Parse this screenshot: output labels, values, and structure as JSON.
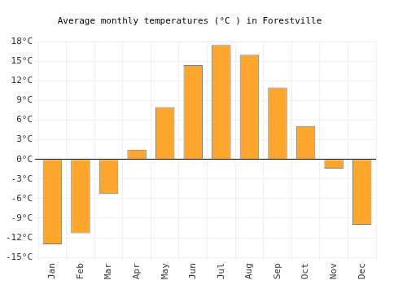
{
  "chart_data": {
    "type": "bar",
    "title": "Average monthly temperatures (°C ) in Forestville",
    "categories": [
      "Jan",
      "Feb",
      "Mar",
      "Apr",
      "May",
      "Jun",
      "Jul",
      "Aug",
      "Sep",
      "Oct",
      "Nov",
      "Dec"
    ],
    "values": [
      -13,
      -11.3,
      -5.3,
      1.5,
      8,
      14.4,
      17.5,
      16,
      11,
      5.1,
      -1.4,
      -10
    ],
    "color": "#fca62e",
    "ylim": [
      -15,
      18
    ],
    "yticks": [
      {
        "value": -15,
        "label": "-15°C"
      },
      {
        "value": -12,
        "label": "-12°C"
      },
      {
        "value": -9,
        "label": "-9°C"
      },
      {
        "value": -6,
        "label": "-6°C"
      },
      {
        "value": -3,
        "label": "-3°C"
      },
      {
        "value": 0,
        "label": "0°C"
      },
      {
        "value": 3,
        "label": "3°C"
      },
      {
        "value": 6,
        "label": "6°C"
      },
      {
        "value": 9,
        "label": "9°C"
      },
      {
        "value": 12,
        "label": "12°C"
      },
      {
        "value": 15,
        "label": "15°C"
      },
      {
        "value": 18,
        "label": "18°C"
      }
    ],
    "grid": true
  }
}
